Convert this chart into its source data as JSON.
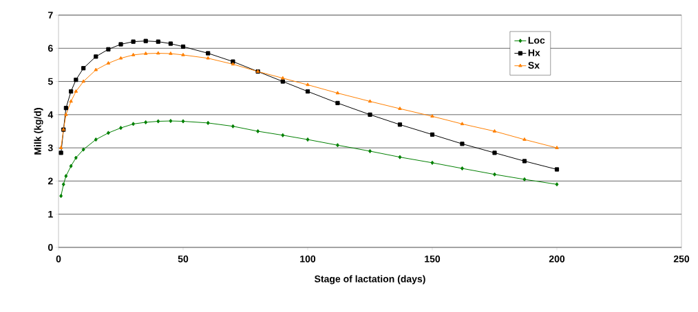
{
  "chart_data": {
    "type": "line",
    "xlabel": "Stage of lactation (days)",
    "ylabel": "Milk (kg/d)",
    "xlim": [
      0,
      250
    ],
    "xticks": [
      0,
      50,
      100,
      150,
      200,
      250
    ],
    "ylim": [
      0,
      7
    ],
    "yticks": [
      0,
      1,
      2,
      3,
      4,
      5,
      6,
      7
    ],
    "grid": "y",
    "legend": "top right",
    "line_style": "solid",
    "series": [
      {
        "name": "Loc",
        "color": "#008000",
        "marker": "diamond",
        "x": [
          1,
          2,
          3,
          5,
          7,
          10,
          15,
          20,
          25,
          30,
          35,
          40,
          45,
          50,
          60,
          70,
          80,
          90,
          100,
          112,
          125,
          137,
          150,
          162,
          175,
          187,
          200
        ],
        "values": [
          1.55,
          1.9,
          2.15,
          2.45,
          2.7,
          2.95,
          3.25,
          3.45,
          3.6,
          3.72,
          3.77,
          3.8,
          3.81,
          3.8,
          3.75,
          3.65,
          3.5,
          3.38,
          3.25,
          3.08,
          2.9,
          2.72,
          2.55,
          2.38,
          2.2,
          2.05,
          1.9
        ]
      },
      {
        "name": "Hx",
        "color": "#000000",
        "marker": "square",
        "x": [
          1,
          2,
          3,
          5,
          7,
          10,
          15,
          20,
          25,
          30,
          35,
          40,
          45,
          50,
          60,
          70,
          80,
          90,
          100,
          112,
          125,
          137,
          150,
          162,
          175,
          187,
          200
        ],
        "values": [
          2.85,
          3.55,
          4.2,
          4.7,
          5.05,
          5.4,
          5.75,
          5.97,
          6.12,
          6.2,
          6.22,
          6.2,
          6.14,
          6.05,
          5.85,
          5.6,
          5.3,
          5.0,
          4.7,
          4.35,
          4.0,
          3.7,
          3.4,
          3.12,
          2.85,
          2.6,
          2.35
        ]
      },
      {
        "name": "Sx",
        "color": "#ff8000",
        "marker": "triangle",
        "x": [
          1,
          2,
          3,
          5,
          7,
          10,
          15,
          20,
          25,
          30,
          35,
          40,
          45,
          50,
          60,
          70,
          80,
          90,
          100,
          112,
          125,
          137,
          150,
          162,
          175,
          187,
          200
        ],
        "values": [
          3.0,
          3.55,
          4.0,
          4.4,
          4.7,
          5.0,
          5.35,
          5.55,
          5.7,
          5.8,
          5.84,
          5.85,
          5.84,
          5.8,
          5.7,
          5.52,
          5.3,
          5.1,
          4.9,
          4.65,
          4.4,
          4.18,
          3.95,
          3.72,
          3.5,
          3.25,
          3.0
        ]
      }
    ]
  }
}
